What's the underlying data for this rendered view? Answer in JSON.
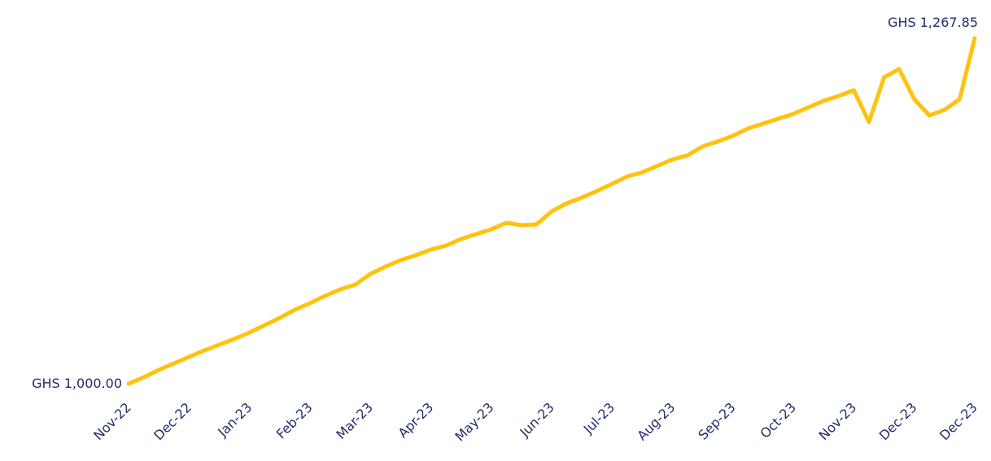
{
  "chart_data": {
    "type": "line",
    "categories": [
      "Nov-22",
      null,
      null,
      null,
      "Dec-22",
      null,
      null,
      null,
      "Jan-23",
      null,
      null,
      null,
      "Feb-23",
      null,
      null,
      null,
      "Mar-23",
      null,
      null,
      null,
      "Apr-23",
      null,
      null,
      null,
      "May-23",
      null,
      null,
      null,
      "Jun-23",
      null,
      null,
      null,
      "Jul-23",
      null,
      null,
      null,
      "Aug-23",
      null,
      null,
      null,
      "Sep-23",
      null,
      null,
      null,
      "Oct-23",
      null,
      null,
      null,
      "Nov-23",
      null,
      null,
      null,
      "Dec-23",
      null,
      null,
      null,
      "Dec-23"
    ],
    "series": [
      {
        "color": "#ffc20e",
        "values": [
          1000.0,
          1005.0,
          1010.7,
          1015.8,
          1020.8,
          1025.8,
          1030.3,
          1034.7,
          1039.7,
          1045.4,
          1051.0,
          1057.4,
          1062.4,
          1068.1,
          1073.1,
          1076.9,
          1085.1,
          1090.8,
          1095.8,
          1099.6,
          1104.0,
          1107.1,
          1112.2,
          1116.0,
          1119.7,
          1124.8,
          1122.9,
          1123.5,
          1133.6,
          1139.9,
          1144.3,
          1149.4,
          1155.0,
          1160.7,
          1163.9,
          1168.9,
          1173.9,
          1177.1,
          1184.0,
          1187.8,
          1192.3,
          1197.9,
          1201.7,
          1205.5,
          1209.2,
          1214.3,
          1219.3,
          1223.1,
          1227.5,
          1202.9,
          1237.6,
          1243.9,
          1220.6,
          1208.0,
          1212.4,
          1220.6,
          1267.85
        ],
        "value_labels": [
          "GHS 1,000.00",
          null,
          null,
          null,
          null,
          null,
          null,
          null,
          null,
          null,
          null,
          null,
          null,
          null,
          null,
          null,
          null,
          null,
          null,
          null,
          null,
          null,
          null,
          null,
          null,
          null,
          null,
          null,
          null,
          null,
          null,
          null,
          null,
          null,
          null,
          null,
          null,
          null,
          null,
          null,
          null,
          null,
          null,
          null,
          null,
          null,
          null,
          null,
          null,
          null,
          null,
          null,
          null,
          null,
          null,
          null,
          "GHS 1,267.85"
        ]
      }
    ]
  }
}
